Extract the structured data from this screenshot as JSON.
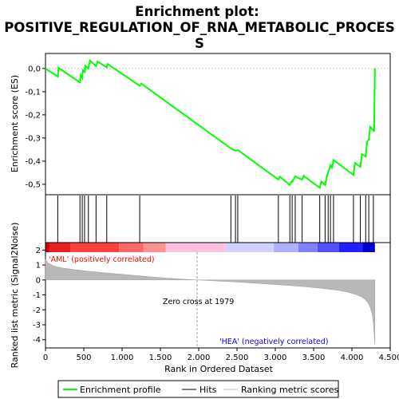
{
  "chart_data": {
    "type": "line",
    "title_line1": "Enrichment plot:",
    "title_line2": "POSITIVE_REGULATION_OF_RNA_METABOLIC_PROCES",
    "title_line3": "S",
    "es_panel": {
      "ylabel": "Enrichment score (ES)",
      "ylim": [
        -0.545,
        0.065
      ],
      "yticks": [
        0.0,
        -0.1,
        -0.2,
        -0.3,
        -0.4,
        -0.5
      ],
      "ytick_labels": [
        "0,0",
        "-0,1",
        "-0,2",
        "-0,3",
        "-0,4",
        "-0,5"
      ],
      "series_name": "Enrichment profile",
      "color": "#00ff00",
      "x": [
        0,
        160,
        170,
        450,
        460,
        480,
        490,
        510,
        520,
        560,
        580,
        660,
        680,
        800,
        810,
        1230,
        1250,
        2420,
        2480,
        2510,
        3040,
        3060,
        3190,
        3210,
        3220,
        3260,
        3280,
        3350,
        3370,
        3580,
        3600,
        3650,
        3670,
        3690,
        3720,
        3740,
        3760,
        4020,
        4040,
        4110,
        4130,
        4180,
        4200,
        4220,
        4240,
        4280,
        4290,
        4300
      ],
      "y": [
        0.0,
        -0.035,
        0.003,
        -0.06,
        -0.028,
        -0.04,
        -0.008,
        -0.015,
        0.012,
        0.0,
        0.035,
        0.01,
        0.03,
        0.005,
        0.02,
        -0.075,
        -0.065,
        -0.345,
        -0.355,
        -0.352,
        -0.48,
        -0.467,
        -0.503,
        -0.488,
        -0.49,
        -0.465,
        -0.47,
        -0.48,
        -0.463,
        -0.515,
        -0.488,
        -0.503,
        -0.472,
        -0.448,
        -0.417,
        -0.428,
        -0.395,
        -0.46,
        -0.408,
        -0.425,
        -0.37,
        -0.38,
        -0.315,
        -0.307,
        -0.252,
        -0.267,
        -0.273,
        0.002
      ]
    },
    "hits": [
      160,
      450,
      480,
      510,
      560,
      660,
      800,
      1230,
      2420,
      2480,
      2510,
      3040,
      3190,
      3220,
      3260,
      3350,
      3580,
      3650,
      3690,
      3720,
      3760,
      4020,
      4110,
      4180,
      4220,
      4280
    ],
    "rank_panel": {
      "ylabel": "Ranked list metric (Signal2Noise)",
      "ylim": [
        -4.55,
        2.5
      ],
      "yticks": [
        2,
        1,
        0,
        -1,
        -2,
        -3,
        -4
      ],
      "ytick_labels": [
        "2",
        "1",
        "0",
        "-1",
        "-2",
        "-3",
        "-4"
      ],
      "series_name": "Ranking metric scores",
      "x": [
        0,
        30,
        100,
        200,
        400,
        600,
        800,
        1000,
        1200,
        1400,
        1600,
        1800,
        1979,
        2200,
        2500,
        2800,
        3100,
        3400,
        3600,
        3800,
        3950,
        4050,
        4120,
        4170,
        4210,
        4240,
        4265,
        4280,
        4290,
        4300
      ],
      "y": [
        1.4,
        1.15,
        0.95,
        0.82,
        0.68,
        0.56,
        0.47,
        0.38,
        0.29,
        0.2,
        0.12,
        0.05,
        0.0,
        -0.06,
        -0.14,
        -0.24,
        -0.34,
        -0.46,
        -0.56,
        -0.68,
        -0.82,
        -0.97,
        -1.12,
        -1.3,
        -1.55,
        -1.85,
        -2.3,
        -2.9,
        -3.6,
        -4.35
      ],
      "zero_cross_label": "Zero cross at 1979",
      "zero_cross": 1979,
      "pos_label": "'AML' (positively correlated)",
      "neg_label": "'HEA' (negatively correlated)",
      "pos_color": "#ff0000",
      "neg_color": "#0000ff"
    },
    "xlabel": "Rank in Ordered Dataset",
    "xlim": [
      0,
      4500
    ],
    "xticks": [
      0,
      500,
      1000,
      1500,
      2000,
      2500,
      3000,
      3500,
      4000,
      4500
    ],
    "xtick_labels": [
      "0",
      "500",
      "1.000",
      "1.500",
      "2.000",
      "2.500",
      "3.000",
      "3.500",
      "4.000",
      "4.500"
    ],
    "color_bar": [
      {
        "from": 0,
        "to": 60,
        "color": "#d80000"
      },
      {
        "from": 60,
        "to": 330,
        "color": "#e82020"
      },
      {
        "from": 330,
        "to": 960,
        "color": "#ff4040"
      },
      {
        "from": 960,
        "to": 1280,
        "color": "#ff6868"
      },
      {
        "from": 1280,
        "to": 1570,
        "color": "#ff9090"
      },
      {
        "from": 1570,
        "to": 2350,
        "color": "#ffc0e0"
      },
      {
        "from": 2350,
        "to": 2980,
        "color": "#d0d0ff"
      },
      {
        "from": 2980,
        "to": 3300,
        "color": "#b0b0ff"
      },
      {
        "from": 3300,
        "to": 3550,
        "color": "#8080ff"
      },
      {
        "from": 3550,
        "to": 3830,
        "color": "#5050ff"
      },
      {
        "from": 3830,
        "to": 4140,
        "color": "#2020ff"
      },
      {
        "from": 4140,
        "to": 4300,
        "color": "#0000d0"
      }
    ],
    "legend": [
      {
        "label": "Enrichment profile",
        "color": "#00ff00"
      },
      {
        "label": "Hits",
        "color": "#000000"
      },
      {
        "label": "Ranking metric scores",
        "color": "#c0c0c0"
      }
    ]
  }
}
